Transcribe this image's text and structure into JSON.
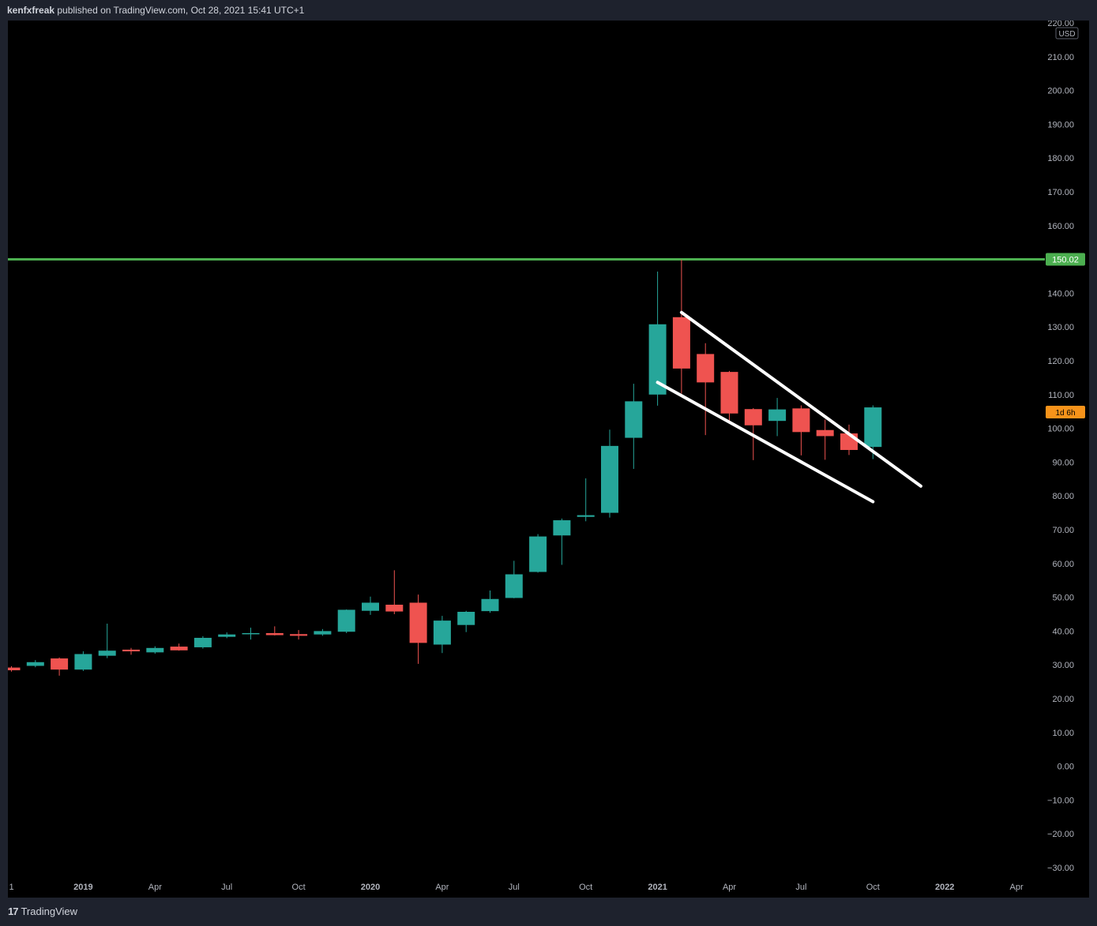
{
  "header": {
    "author": "kenfxfreak",
    "rest": " published on TradingView.com, Oct 28, 2021 15:41 UTC+1"
  },
  "footer": {
    "logo_icon": "tradingview-logo-icon",
    "brand": "TradingView"
  },
  "colors": {
    "background": "#000000",
    "up": "#26a69a",
    "down": "#ef5350",
    "resistance": "#4caf50",
    "trendline": "#ffffff",
    "axis_text": "#b2b5be",
    "countdown_bg": "#f7931a"
  },
  "chart_data": {
    "type": "candlestick",
    "interval": "1M",
    "currency": "USD",
    "ylim": [
      -30,
      220
    ],
    "y_ticks": [
      220,
      210,
      200,
      190,
      180,
      170,
      160,
      150,
      140,
      130,
      120,
      110,
      100,
      90,
      80,
      70,
      60,
      50,
      40,
      30,
      20,
      10,
      0,
      -10,
      -20,
      -30
    ],
    "y_tick_labels": [
      "220.00",
      "210.00",
      "200.00",
      "190.00",
      "180.00",
      "170.00",
      "160.00",
      "150.00",
      "140.00",
      "130.00",
      "120.00",
      "110.00",
      "100.00",
      "90.00",
      "80.00",
      "70.00",
      "60.00",
      "50.00",
      "40.00",
      "30.00",
      "20.00",
      "10.00",
      "0.00",
      "−10.00",
      "−20.00",
      "−30.00"
    ],
    "x_labels": [
      {
        "label": "1",
        "month": "2018-10"
      },
      {
        "label": "2019",
        "month": "2019-01"
      },
      {
        "label": "Apr",
        "month": "2019-04"
      },
      {
        "label": "Jul",
        "month": "2019-07"
      },
      {
        "label": "Oct",
        "month": "2019-10"
      },
      {
        "label": "2020",
        "month": "2020-01"
      },
      {
        "label": "Apr",
        "month": "2020-04"
      },
      {
        "label": "Jul",
        "month": "2020-07"
      },
      {
        "label": "Oct",
        "month": "2020-10"
      },
      {
        "label": "2021",
        "month": "2021-01"
      },
      {
        "label": "Apr",
        "month": "2021-04"
      },
      {
        "label": "Jul",
        "month": "2021-07"
      },
      {
        "label": "Oct",
        "month": "2021-10"
      },
      {
        "label": "2022",
        "month": "2022-01"
      },
      {
        "label": "Apr",
        "month": "2022-04"
      }
    ],
    "candles": [
      {
        "date": "2018-10",
        "open": 29.2,
        "high": 29.6,
        "low": 28.0,
        "close": 28.4
      },
      {
        "date": "2018-11",
        "open": 29.7,
        "high": 31.4,
        "low": 29.3,
        "close": 30.8
      },
      {
        "date": "2018-12",
        "open": 31.9,
        "high": 32.2,
        "low": 26.8,
        "close": 28.6
      },
      {
        "date": "2019-01",
        "open": 28.6,
        "high": 34.0,
        "low": 28.2,
        "close": 33.2
      },
      {
        "date": "2019-02",
        "open": 32.7,
        "high": 42.2,
        "low": 32.0,
        "close": 34.2
      },
      {
        "date": "2019-03",
        "open": 34.5,
        "high": 35.0,
        "low": 33.0,
        "close": 34.0
      },
      {
        "date": "2019-04",
        "open": 33.7,
        "high": 35.5,
        "low": 33.3,
        "close": 35.0
      },
      {
        "date": "2019-05",
        "open": 35.4,
        "high": 36.3,
        "low": 34.2,
        "close": 34.3
      },
      {
        "date": "2019-06",
        "open": 35.2,
        "high": 38.5,
        "low": 34.8,
        "close": 38.0
      },
      {
        "date": "2019-07",
        "open": 38.3,
        "high": 39.6,
        "low": 37.9,
        "close": 39.0
      },
      {
        "date": "2019-08",
        "open": 39.2,
        "high": 41.0,
        "low": 37.5,
        "close": 39.4
      },
      {
        "date": "2019-09",
        "open": 39.4,
        "high": 41.4,
        "low": 38.7,
        "close": 38.8
      },
      {
        "date": "2019-10",
        "open": 39.1,
        "high": 40.3,
        "low": 37.5,
        "close": 38.6
      },
      {
        "date": "2019-11",
        "open": 39.0,
        "high": 40.6,
        "low": 38.6,
        "close": 40.0
      },
      {
        "date": "2019-12",
        "open": 39.8,
        "high": 46.4,
        "low": 39.4,
        "close": 46.3
      },
      {
        "date": "2020-01",
        "open": 46.0,
        "high": 50.2,
        "low": 44.8,
        "close": 48.4
      },
      {
        "date": "2020-02",
        "open": 47.8,
        "high": 58.0,
        "low": 45.0,
        "close": 45.8
      },
      {
        "date": "2020-03",
        "open": 48.4,
        "high": 50.8,
        "low": 30.3,
        "close": 36.5
      },
      {
        "date": "2020-04",
        "open": 36.0,
        "high": 44.5,
        "low": 33.5,
        "close": 43.1
      },
      {
        "date": "2020-05",
        "open": 41.8,
        "high": 46.0,
        "low": 39.7,
        "close": 45.7
      },
      {
        "date": "2020-06",
        "open": 45.9,
        "high": 52.0,
        "low": 45.4,
        "close": 49.5
      },
      {
        "date": "2020-07",
        "open": 49.8,
        "high": 60.8,
        "low": 49.7,
        "close": 56.8
      },
      {
        "date": "2020-08",
        "open": 57.5,
        "high": 68.7,
        "low": 57.3,
        "close": 68.0
      },
      {
        "date": "2020-09",
        "open": 68.3,
        "high": 73.3,
        "low": 59.6,
        "close": 72.8
      },
      {
        "date": "2020-10",
        "open": 73.8,
        "high": 85.2,
        "low": 72.5,
        "close": 74.3
      },
      {
        "date": "2020-11",
        "open": 75.0,
        "high": 99.6,
        "low": 73.6,
        "close": 94.8
      },
      {
        "date": "2020-12",
        "open": 97.2,
        "high": 113.2,
        "low": 88.0,
        "close": 108.0
      },
      {
        "date": "2021-01",
        "open": 110.0,
        "high": 146.4,
        "low": 106.7,
        "close": 130.8
      },
      {
        "date": "2021-02",
        "open": 132.9,
        "high": 150.0,
        "low": 110.3,
        "close": 117.7
      },
      {
        "date": "2021-03",
        "open": 122.0,
        "high": 125.2,
        "low": 98.0,
        "close": 113.6
      },
      {
        "date": "2021-04",
        "open": 116.7,
        "high": 117.0,
        "low": 101.8,
        "close": 104.4
      },
      {
        "date": "2021-05",
        "open": 105.7,
        "high": 106.0,
        "low": 90.6,
        "close": 100.9
      },
      {
        "date": "2021-06",
        "open": 102.2,
        "high": 109.0,
        "low": 97.7,
        "close": 105.6
      },
      {
        "date": "2021-07",
        "open": 105.9,
        "high": 106.8,
        "low": 92.0,
        "close": 98.9
      },
      {
        "date": "2021-08",
        "open": 99.5,
        "high": 102.6,
        "low": 90.7,
        "close": 97.7
      },
      {
        "date": "2021-09",
        "open": 98.5,
        "high": 101.1,
        "low": 92.1,
        "close": 93.6
      },
      {
        "date": "2021-10",
        "open": 94.5,
        "high": 106.8,
        "low": 90.9,
        "close": 106.2
      }
    ],
    "horizontal_line": {
      "value": 150.02,
      "label": "150.02"
    },
    "trendlines": [
      {
        "from": {
          "date": "2021-02",
          "value": 134.3
        },
        "to": {
          "date": "2021-12",
          "value": 82.9
        }
      },
      {
        "from": {
          "date": "2021-01",
          "value": 113.6
        },
        "to": {
          "date": "2021-10",
          "value": 78.3
        }
      }
    ],
    "price_badges": {
      "currency_label": "USD",
      "countdown": "1d 6h",
      "countdown_value": 104.8
    }
  }
}
